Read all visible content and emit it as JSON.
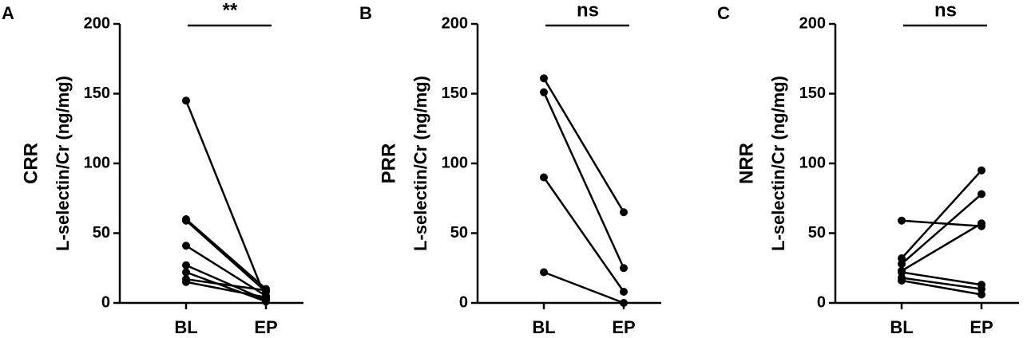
{
  "chart_data": [
    {
      "type": "line",
      "panel": "A",
      "group_label": "CRR",
      "y_label": "L-selectin/Cr (ng/mg)",
      "significance": "**",
      "categories": [
        "BL",
        "EP"
      ],
      "color": "#000000",
      "ylim": [
        0,
        200
      ],
      "yticks": [
        0,
        50,
        100,
        150,
        200
      ],
      "series": [
        {
          "values": [
            145,
            3
          ]
        },
        {
          "values": [
            60,
            10
          ]
        },
        {
          "values": [
            59,
            8
          ]
        },
        {
          "values": [
            41,
            5
          ]
        },
        {
          "values": [
            27,
            2
          ]
        },
        {
          "values": [
            22,
            1
          ]
        },
        {
          "values": [
            17,
            9
          ]
        },
        {
          "values": [
            15,
            4
          ]
        }
      ]
    },
    {
      "type": "line",
      "panel": "B",
      "group_label": "PRR",
      "y_label": "L-selectin/Cr (ng/mg)",
      "significance": "ns",
      "categories": [
        "BL",
        "EP"
      ],
      "color": "#000000",
      "ylim": [
        0,
        200
      ],
      "yticks": [
        0,
        50,
        100,
        150,
        200
      ],
      "series": [
        {
          "values": [
            161,
            65
          ]
        },
        {
          "values": [
            151,
            25
          ]
        },
        {
          "values": [
            90,
            8
          ]
        },
        {
          "values": [
            22,
            0
          ]
        }
      ]
    },
    {
      "type": "line",
      "panel": "C",
      "group_label": "NRR",
      "y_label": "L-selectin/Cr (ng/mg)",
      "significance": "ns",
      "categories": [
        "BL",
        "EP"
      ],
      "color": "#000000",
      "ylim": [
        0,
        200
      ],
      "yticks": [
        0,
        50,
        100,
        150,
        200
      ],
      "series": [
        {
          "values": [
            59,
            55
          ]
        },
        {
          "values": [
            32,
            95
          ]
        },
        {
          "values": [
            28,
            78
          ]
        },
        {
          "values": [
            23,
            57
          ]
        },
        {
          "values": [
            22,
            13
          ]
        },
        {
          "values": [
            18,
            10
          ]
        },
        {
          "values": [
            16,
            6
          ]
        }
      ]
    }
  ]
}
